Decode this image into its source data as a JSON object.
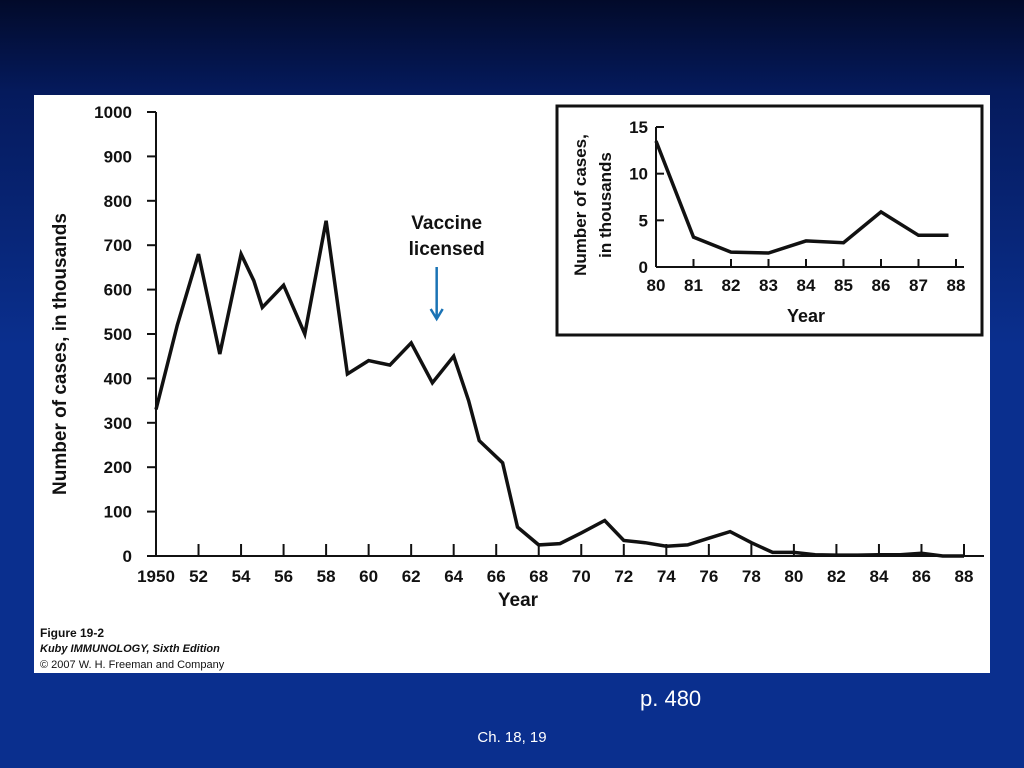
{
  "chart_data": [
    {
      "type": "line",
      "title": "",
      "xlabel": "Year",
      "ylabel": "Number of cases, in thousands",
      "xlim": [
        1950,
        1988
      ],
      "ylim": [
        0,
        1000
      ],
      "yticks": [
        0,
        100,
        200,
        300,
        400,
        500,
        600,
        700,
        800,
        900,
        1000
      ],
      "xticks": [
        1950,
        1952,
        1954,
        1956,
        1958,
        1960,
        1962,
        1964,
        1966,
        1968,
        1970,
        1972,
        1974,
        1976,
        1978,
        1980,
        1982,
        1984,
        1986,
        1988
      ],
      "xtick_labels": [
        "1950",
        "52",
        "54",
        "56",
        "58",
        "60",
        "62",
        "64",
        "66",
        "68",
        "70",
        "72",
        "74",
        "76",
        "78",
        "80",
        "82",
        "84",
        "86",
        "88"
      ],
      "grid": false,
      "x": [
        1950,
        1951,
        1952,
        1953,
        1954,
        1954.6,
        1955,
        1956,
        1957,
        1958,
        1959,
        1960,
        1961,
        1962,
        1963,
        1964,
        1964.7,
        1965.2,
        1966.3,
        1967,
        1968,
        1969,
        1970,
        1971.1,
        1972,
        1973,
        1974,
        1975,
        1976,
        1977,
        1978,
        1979,
        1980,
        1981,
        1982,
        1983,
        1984,
        1985,
        1986,
        1987,
        1988
      ],
      "y": [
        330,
        520,
        680,
        455,
        680,
        620,
        560,
        610,
        500,
        755,
        410,
        440,
        430,
        480,
        390,
        450,
        350,
        260,
        210,
        65,
        25,
        28,
        52,
        80,
        35,
        30,
        22,
        25,
        40,
        55,
        30,
        8,
        8,
        3,
        2,
        2,
        3,
        3,
        6,
        0,
        0
      ],
      "annotations": [
        {
          "line1": "Vaccine",
          "line2": "licensed",
          "x": 1963.2
        }
      ]
    },
    {
      "type": "line",
      "title": "",
      "xlabel": "Year",
      "ylabel_line1": "Number of cases,",
      "ylabel_line2": "in thousands",
      "xlim": [
        80,
        88
      ],
      "ylim": [
        0,
        15
      ],
      "yticks": [
        0,
        5,
        10,
        15
      ],
      "xticks": [
        80,
        81,
        82,
        83,
        84,
        85,
        86,
        87,
        88
      ],
      "grid": false,
      "x": [
        80,
        81,
        82,
        83,
        84,
        85,
        86,
        87,
        87.8
      ],
      "y": [
        13.5,
        3.2,
        1.6,
        1.5,
        2.8,
        2.6,
        5.9,
        3.4,
        3.4
      ]
    }
  ],
  "caption": {
    "figure": "Figure 19-2",
    "book": "Kuby IMMUNOLOGY, Sixth Edition",
    "copyright": "© 2007 W. H. Freeman and Company"
  },
  "slide": {
    "page_ref": "p. 480",
    "chapter_ref": "Ch. 18, 19"
  },
  "colors": {
    "background_top": "#020a2a",
    "background_main": "#0a2f8e",
    "line": "#111111",
    "arrow": "#1a73b5",
    "panel": "#ffffff"
  }
}
